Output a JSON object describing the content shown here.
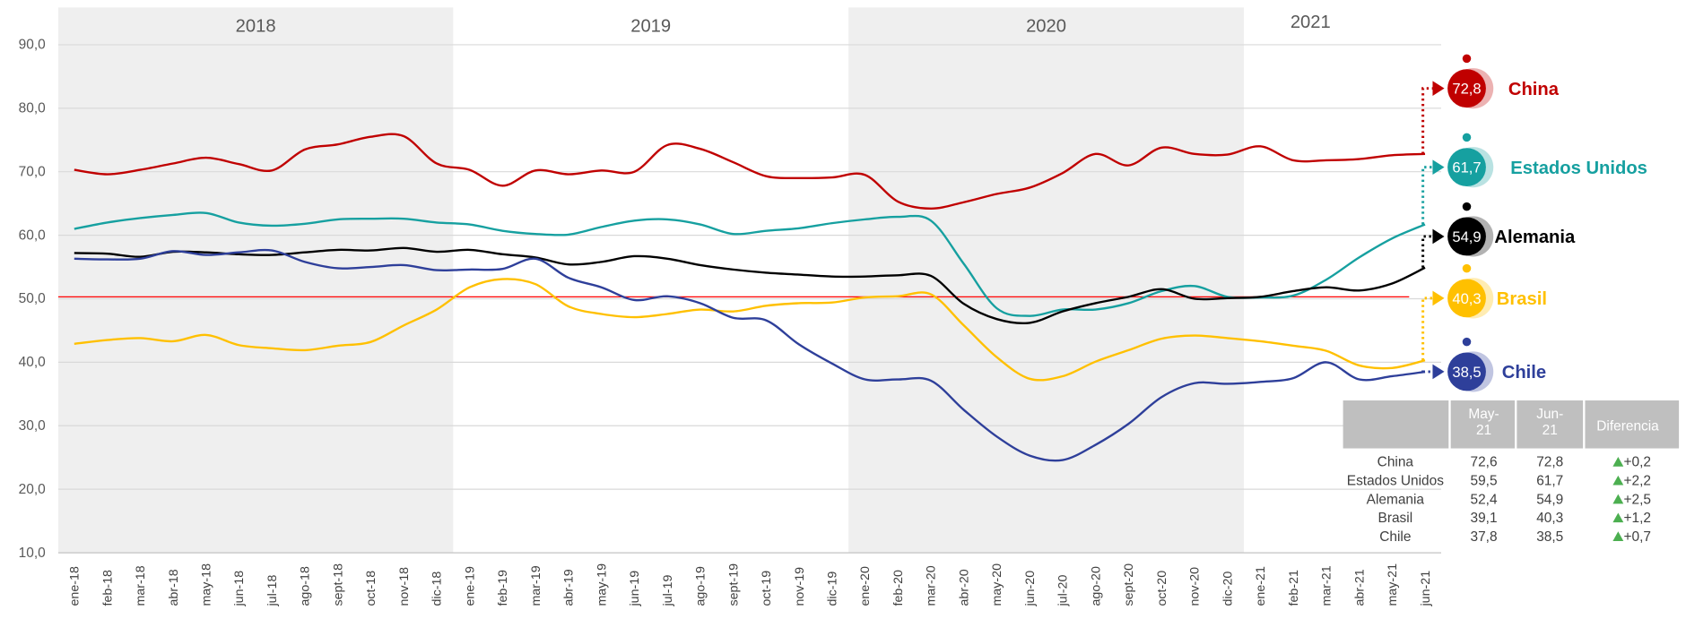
{
  "chart_data": {
    "type": "line",
    "years": [
      "2018",
      "2019",
      "2020",
      "2021"
    ],
    "categories": [
      "ene-18",
      "feb-18",
      "mar-18",
      "abr-18",
      "may-18",
      "jun-18",
      "jul-18",
      "ago-18",
      "sept-18",
      "oct-18",
      "nov-18",
      "dic-18",
      "ene-19",
      "feb-19",
      "mar-19",
      "abr-19",
      "may-19",
      "jun-19",
      "jul-19",
      "ago-19",
      "sept-19",
      "oct-19",
      "nov-19",
      "dic-19",
      "ene-20",
      "feb-20",
      "mar-20",
      "abr-20",
      "may-20",
      "jun-20",
      "jul-20",
      "ago-20",
      "sept-20",
      "oct-20",
      "nov-20",
      "dic-20",
      "ene-21",
      "feb-21",
      "mar-21",
      "abr-21",
      "may-21",
      "jun-21"
    ],
    "ylim": [
      10,
      90
    ],
    "yticks": [
      {
        "value": 10,
        "label": "10,0"
      },
      {
        "value": 20,
        "label": "20,0"
      },
      {
        "value": 30,
        "label": "30,0"
      },
      {
        "value": 40,
        "label": "40,0"
      },
      {
        "value": 50,
        "label": "50,0"
      },
      {
        "value": 60,
        "label": "60,0"
      },
      {
        "value": 70,
        "label": "70,0"
      },
      {
        "value": 80,
        "label": "80,0"
      },
      {
        "value": 90,
        "label": "90,0"
      }
    ],
    "grid": true,
    "reference_line": 50.3,
    "series": [
      {
        "name": "China",
        "color": "#c00000",
        "end_label": "72,8",
        "values": [
          70.3,
          69.6,
          70.3,
          71.3,
          72.2,
          71.2,
          70.2,
          73.5,
          74.3,
          75.5,
          75.6,
          71.3,
          70.3,
          67.8,
          70.2,
          69.6,
          70.2,
          70.0,
          74.2,
          73.6,
          71.5,
          69.3,
          69.0,
          69.1,
          69.5,
          65.3,
          64.2,
          65.2,
          66.5,
          67.5,
          69.8,
          72.8,
          71.0,
          73.8,
          72.8,
          72.7,
          74.0,
          71.8,
          71.8,
          72.0,
          72.6,
          72.8
        ]
      },
      {
        "name": "Estados Unidos",
        "color": "#16a0a0",
        "end_label": "61,7",
        "values": [
          61.0,
          62.0,
          62.7,
          63.2,
          63.5,
          62.0,
          61.5,
          61.8,
          62.5,
          62.6,
          62.6,
          62.0,
          61.7,
          60.7,
          60.2,
          60.1,
          61.3,
          62.3,
          62.5,
          61.7,
          60.2,
          60.7,
          61.1,
          61.9,
          62.5,
          62.9,
          62.3,
          55.5,
          48.5,
          47.3,
          48.3,
          48.3,
          49.3,
          51.2,
          52.0,
          50.3,
          50.2,
          50.5,
          53.0,
          56.5,
          59.5,
          61.7
        ]
      },
      {
        "name": "Alemania",
        "color": "#000000",
        "end_label": "54,9",
        "values": [
          57.2,
          57.1,
          56.6,
          57.4,
          57.3,
          57.0,
          56.9,
          57.3,
          57.7,
          57.6,
          58.0,
          57.4,
          57.7,
          57.0,
          56.5,
          55.4,
          55.8,
          56.7,
          56.3,
          55.3,
          54.6,
          54.1,
          53.8,
          53.5,
          53.5,
          53.7,
          53.6,
          49.2,
          46.8,
          46.2,
          48.0,
          49.3,
          50.3,
          51.5,
          50.0,
          50.1,
          50.3,
          51.2,
          51.8,
          51.3,
          52.4,
          54.9
        ]
      },
      {
        "name": "Brasil",
        "color": "#ffc000",
        "end_label": "40,3",
        "values": [
          42.9,
          43.5,
          43.8,
          43.3,
          44.3,
          42.7,
          42.2,
          41.9,
          42.6,
          43.2,
          45.8,
          48.3,
          51.8,
          53.1,
          52.3,
          48.8,
          47.6,
          47.1,
          47.6,
          48.3,
          48.0,
          48.9,
          49.3,
          49.4,
          50.2,
          50.4,
          50.7,
          45.8,
          40.8,
          37.4,
          37.8,
          40.1,
          41.9,
          43.7,
          44.2,
          43.8,
          43.3,
          42.6,
          41.8,
          39.5,
          39.1,
          40.3
        ]
      },
      {
        "name": "Chile",
        "color": "#2e3f9a",
        "end_label": "38,5",
        "values": [
          56.3,
          56.2,
          56.3,
          57.5,
          56.9,
          57.3,
          57.6,
          55.8,
          54.8,
          55.0,
          55.3,
          54.5,
          54.6,
          54.7,
          56.3,
          53.3,
          51.8,
          49.8,
          50.4,
          49.3,
          47.0,
          46.6,
          42.8,
          39.8,
          37.3,
          37.3,
          37.1,
          32.5,
          28.3,
          25.3,
          24.6,
          27.0,
          30.3,
          34.5,
          36.7,
          36.6,
          36.9,
          37.5,
          40.0,
          37.3,
          37.8,
          38.5
        ]
      }
    ]
  },
  "table": {
    "headers": [
      "May-21",
      "Jun-21",
      "Diferencia"
    ],
    "rows": [
      [
        "China",
        "72,6",
        "72,8",
        "+0,2"
      ],
      [
        "Estados Unidos",
        "59,5",
        "61,7",
        "+2,2"
      ],
      [
        "Alemania",
        "52,4",
        "54,9",
        "+2,5"
      ],
      [
        "Brasil",
        "39,1",
        "40,3",
        "+1,2"
      ],
      [
        "Chile",
        "37,8",
        "38,5",
        "+0,7"
      ]
    ]
  }
}
